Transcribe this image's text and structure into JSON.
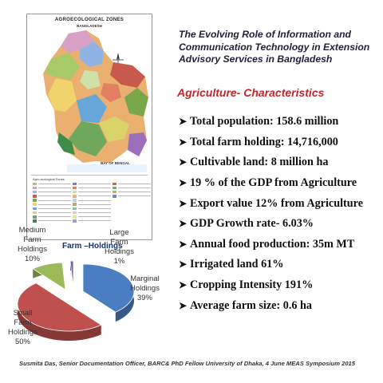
{
  "map": {
    "title": "AGROECOLOGICAL ZONES",
    "subtitle": "BANGLADESH",
    "bay_label": "BAY OF BENGAL",
    "legend_title": "Agro-ecological Zones"
  },
  "title": "The Evolving Role of Information and Communication Technology in Extension Advisory Services  in Bangladesh",
  "subtitle": "Agriculture- Characteristics",
  "facts": [
    "Total population: 158.6  million",
    "Total farm holding: 14,716,000",
    "Cultivable land: 8 million ha",
    "19 % of the GDP from Agriculture",
    "Export value 12% from Agriculture",
    "GDP Growth rate- 6.03%",
    "Annual food production: 35m MT",
    "Irrigated land  61%",
    "Cropping Intensity 191%",
    "Average farm size:  0.6 ha"
  ],
  "chart_data": {
    "type": "pie",
    "title": "Farm –Holdings",
    "slices": [
      {
        "label": "Marginal Holdings",
        "value": 39,
        "display": "39%",
        "color": "#4a7ec2"
      },
      {
        "label": "Small Farm Holdings",
        "value": 50,
        "display": "50%",
        "color": "#c0504d"
      },
      {
        "label": "Medium Farm Holdings",
        "value": 10,
        "display": "10%",
        "color": "#9bbb59"
      },
      {
        "label": "Large Farm Holdings",
        "value": 1,
        "display": "1%",
        "color": "#7a5ea6"
      }
    ]
  },
  "labels": {
    "medium": [
      "Medium",
      "Farm",
      "Holdings",
      "10%"
    ],
    "large": [
      "Large",
      "Farm",
      "Holdings",
      "1%"
    ],
    "marginal": [
      "Marginal",
      "Holdings",
      "39%"
    ],
    "small": [
      "Small",
      "Farm",
      "Holdings",
      "50%"
    ]
  },
  "footer": "Susmita Das, Senior Documentation Officer, BARC& PhD Fellow University of Dhaka, 4 June  MEAS Symposium 2015",
  "colors": {
    "title": "#1f1f3a",
    "subtitle": "#c0262c",
    "chart_title": "#16326a"
  }
}
